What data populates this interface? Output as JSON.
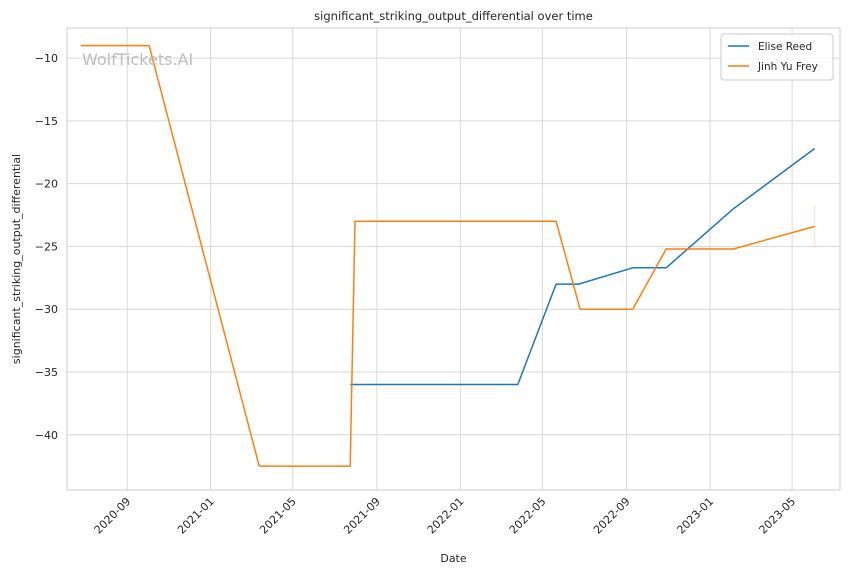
{
  "chart_data": {
    "type": "line",
    "title": "significant_striking_output_differential over time",
    "xlabel": "Date",
    "ylabel": "significant_striking_output_differential",
    "watermark": "WolfTickets.AI",
    "xlim": [
      "2020-06-05",
      "2023-07-10"
    ],
    "ylim": [
      -44.4,
      -7.6
    ],
    "x_ticks": [
      "2020-09",
      "2021-01",
      "2021-05",
      "2021-09",
      "2022-01",
      "2022-05",
      "2022-09",
      "2023-01",
      "2023-05"
    ],
    "y_ticks": [
      -10,
      -15,
      -20,
      -25,
      -30,
      -35,
      -40
    ],
    "y_tick_labels": [
      "−10",
      "−15",
      "−20",
      "−25",
      "−30",
      "−35",
      "−40"
    ],
    "grid": true,
    "legend_position": "top-right",
    "series": [
      {
        "name": "Elise Reed",
        "color": "#1f77b4",
        "points": [
          {
            "x": "2021-07-24",
            "y": -36.0
          },
          {
            "x": "2022-03-26",
            "y": -36.0
          },
          {
            "x": "2022-05-21",
            "y": -28.0
          },
          {
            "x": "2022-06-23",
            "y": -28.0
          },
          {
            "x": "2022-09-10",
            "y": -26.7
          },
          {
            "x": "2022-10-29",
            "y": -26.7
          },
          {
            "x": "2023-02-04",
            "y": -22.0
          },
          {
            "x": "2023-06-03",
            "y": -17.2
          }
        ]
      },
      {
        "name": "Jinh Yu Frey",
        "color": "#ff7f0e",
        "points": [
          {
            "x": "2020-06-25",
            "y": -9.0
          },
          {
            "x": "2020-10-03",
            "y": -9.0
          },
          {
            "x": "2021-03-13",
            "y": -42.5
          },
          {
            "x": "2021-07-24",
            "y": -42.5
          },
          {
            "x": "2021-07-31",
            "y": -23.0
          },
          {
            "x": "2022-05-21",
            "y": -23.0
          },
          {
            "x": "2022-06-25",
            "y": -30.0
          },
          {
            "x": "2022-09-10",
            "y": -30.0
          },
          {
            "x": "2022-10-29",
            "y": -25.2
          },
          {
            "x": "2023-02-04",
            "y": -25.2
          },
          {
            "x": "2023-06-03",
            "y": -23.4
          }
        ]
      }
    ]
  }
}
